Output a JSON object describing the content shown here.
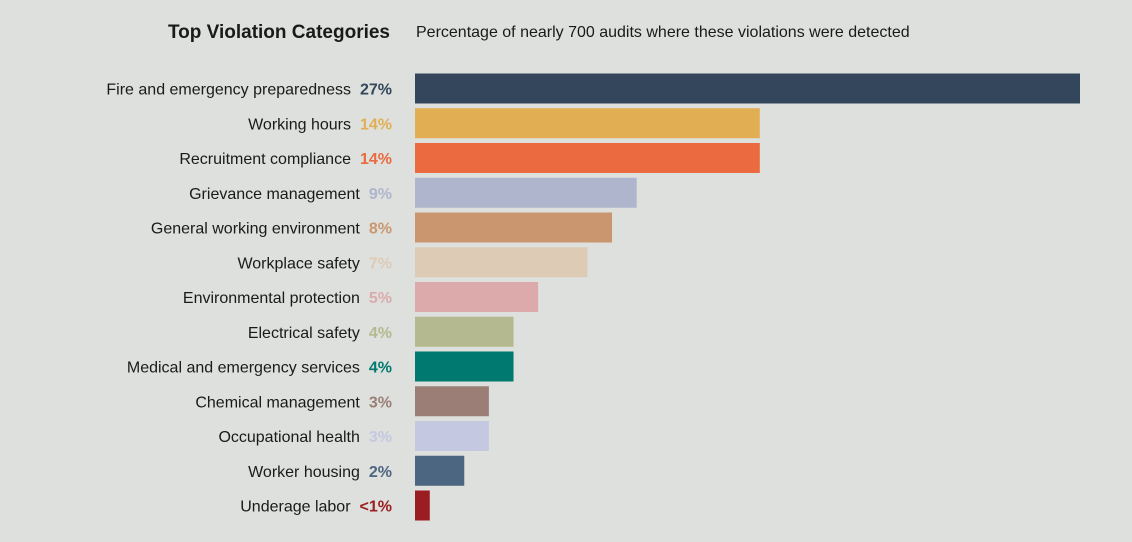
{
  "chart_data": {
    "type": "bar",
    "orientation": "horizontal",
    "title": "Top Violation Categories",
    "subtitle": "Percentage of nearly 700 audits where these violations were detected",
    "xlim": [
      0,
      27
    ],
    "categories": [
      "Fire and emergency preparedness",
      "Working hours",
      "Recruitment compliance",
      "Grievance management",
      "General working environment",
      "Workplace safety",
      "Environmental protection",
      "Electrical safety",
      "Medical and emergency services",
      "Chemical management",
      "Occupational health",
      "Worker housing",
      "Underage labor"
    ],
    "values": [
      27,
      14,
      14,
      9,
      8,
      7,
      5,
      4,
      4,
      3,
      3,
      2,
      0.6
    ],
    "value_labels": [
      "27%",
      "14%",
      "14%",
      "9%",
      "8%",
      "7%",
      "5%",
      "4%",
      "4%",
      "3%",
      "3%",
      "2%",
      "<1%"
    ],
    "colors": [
      "#33465b",
      "#e2ae53",
      "#ec6a3f",
      "#afb5cd",
      "#c9966f",
      "#ddcbb5",
      "#ddaaac",
      "#b4b98f",
      "#007a70",
      "#9b7f76",
      "#c5c8e1",
      "#4c6580",
      "#9a1e21"
    ],
    "grid": false,
    "legend": "none"
  }
}
